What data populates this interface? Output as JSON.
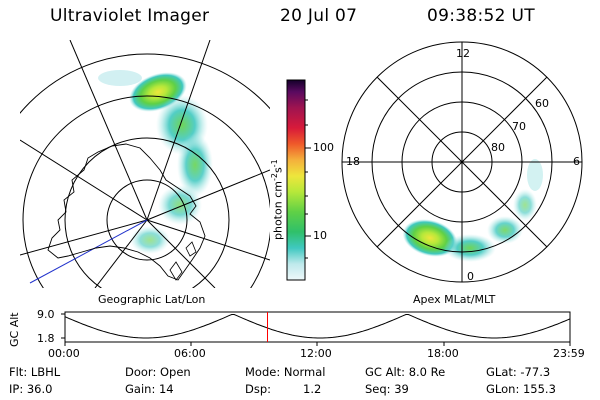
{
  "header": {
    "instrument": "Ultraviolet Imager",
    "date": "20 Jul 07",
    "time": "09:38:52 UT"
  },
  "left_panel": {
    "label": "Geographic Lat/Lon"
  },
  "right_panel": {
    "label": "Apex MLat/MLT",
    "mlt_labels": [
      "12",
      "18",
      "6",
      "0"
    ],
    "lat_labels": [
      "60",
      "70",
      "80"
    ]
  },
  "colorbar": {
    "unit_text": "photon cm",
    "unit_exp1": "-2",
    "unit_mid": "s",
    "unit_exp2": "-1",
    "tick_labels": [
      "100",
      "10"
    ],
    "scale": "log",
    "colors": [
      "#dff3f5",
      "#a8e6e6",
      "#3fc8c0",
      "#2fc06a",
      "#5fd046",
      "#b6e83a",
      "#eee63c",
      "#f4b03c",
      "#ef5a2a",
      "#d81a3a",
      "#a01450",
      "#5a0a60",
      "#14002a"
    ]
  },
  "timeline": {
    "ylabel": "GC Alt",
    "y_ticks": [
      "9.0",
      "1.8"
    ],
    "x_ticks": [
      "00:00",
      "06:00",
      "12:00",
      "18:00",
      "23:59"
    ],
    "current_time_fraction": 0.401,
    "marker_color": "#ff0000"
  },
  "info": {
    "flt": "Flt: LBHL",
    "ip": "IP: 36.0",
    "door": "Door: Open",
    "gain": "Gain: 14",
    "mode": "Mode: Normal",
    "dsp_label": "Dsp:",
    "dsp_value": "1.2",
    "gcalt": "GC Alt: 8.0 Re",
    "seq": "Seq: 39",
    "glat": "GLat: -77.3",
    "glon": "GLon: 155.3"
  }
}
